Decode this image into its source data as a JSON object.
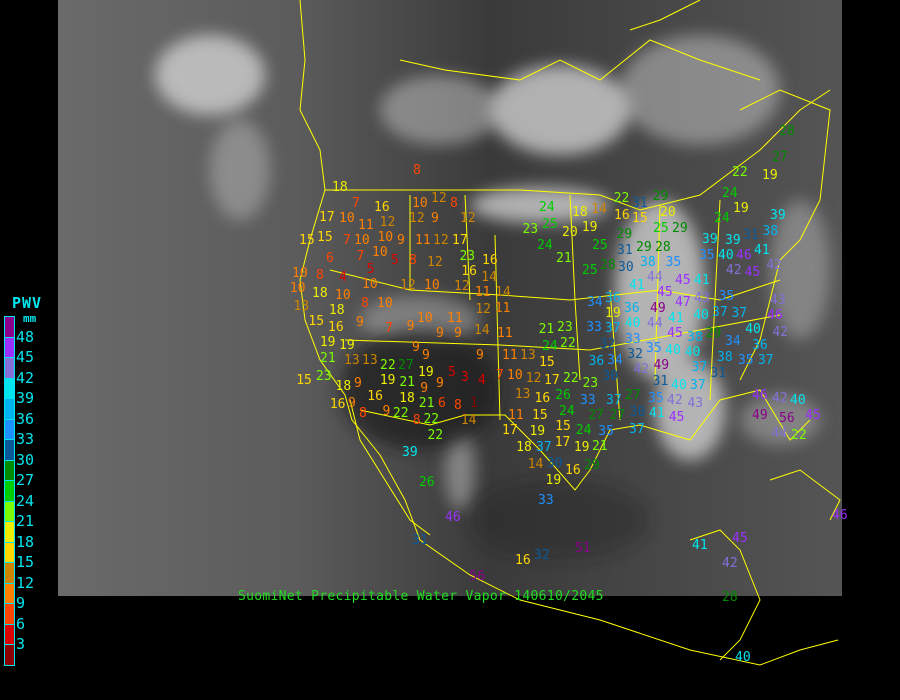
{
  "title": "SuomiNet Precipitable Water Vapor 140610/2045",
  "legend": {
    "title": "PWV",
    "unit": "mm",
    "labels": [
      "48",
      "45",
      "42",
      "39",
      "36",
      "33",
      "30",
      "27",
      "24",
      "21",
      "18",
      "15",
      "12",
      "9",
      "6",
      "3"
    ],
    "colors": [
      "#8b008b",
      "#9b30ff",
      "#8470d8",
      "#00e5ee",
      "#00b2ee",
      "#1e90ff",
      "#0a5a9a",
      "#008b00",
      "#00cd00",
      "#7cfc00",
      "#eeee00",
      "#ffd700",
      "#cd8500",
      "#ff8000",
      "#ff4500",
      "#dd0000",
      "#8b0000"
    ]
  },
  "border_color": "#ffff00",
  "stations": [
    8,
    18,
    7,
    16,
    12,
    10,
    12,
    8,
    12,
    9,
    12,
    10,
    11,
    10,
    9,
    7,
    10,
    10,
    7,
    5,
    5,
    8,
    11,
    12,
    17,
    23,
    16,
    16,
    12,
    6,
    14,
    8,
    10,
    4,
    10,
    12,
    10,
    12,
    11,
    14,
    11,
    10,
    18,
    8,
    10,
    12,
    9,
    10,
    11,
    9,
    9,
    7,
    9,
    14,
    11,
    9,
    9,
    9,
    11,
    13,
    15,
    13,
    13,
    22,
    27,
    5,
    3,
    4,
    7,
    10,
    12,
    17,
    19,
    21,
    19,
    9,
    9,
    16,
    18,
    9,
    13,
    22,
    21,
    6,
    8,
    1,
    9,
    8,
    22,
    22,
    14,
    11,
    15,
    17,
    16,
    9,
    18,
    15,
    15,
    17,
    10,
    13,
    15,
    16,
    19,
    19,
    21,
    23,
    15,
    16,
    8,
    18,
    24,
    18,
    20,
    19,
    24,
    21,
    25,
    23,
    25,
    25,
    28,
    30,
    31,
    29,
    38,
    44,
    41,
    45,
    45,
    41,
    49,
    47,
    43,
    40,
    37,
    44,
    41,
    45,
    34,
    36,
    36,
    40,
    19,
    37,
    33,
    32,
    33,
    34,
    32,
    35,
    40,
    49,
    38,
    40,
    42,
    31,
    36,
    30,
    40,
    37,
    37,
    38,
    34,
    36,
    37,
    35,
    37,
    43,
    46,
    42,
    40,
    29,
    35,
    31,
    28,
    29,
    35,
    35,
    39,
    39,
    40,
    46,
    42,
    45,
    41,
    42,
    39,
    38,
    31,
    24,
    24,
    19,
    14,
    31,
    15,
    16,
    20,
    29,
    25,
    22,
    29,
    33,
    37,
    27,
    27,
    27,
    30,
    35,
    37,
    35,
    41,
    42,
    45,
    43,
    46,
    42,
    40,
    49,
    56,
    45,
    44,
    22,
    22,
    26,
    24,
    23,
    15,
    19,
    24,
    17,
    19,
    37,
    26,
    39,
    33,
    16,
    30,
    29,
    21,
    14,
    18,
    19,
    16,
    32,
    51,
    46,
    31,
    56,
    41,
    45,
    42,
    46,
    40,
    28,
    28,
    27,
    19,
    22,
    24,
    22,
    23,
    21
  ]
}
